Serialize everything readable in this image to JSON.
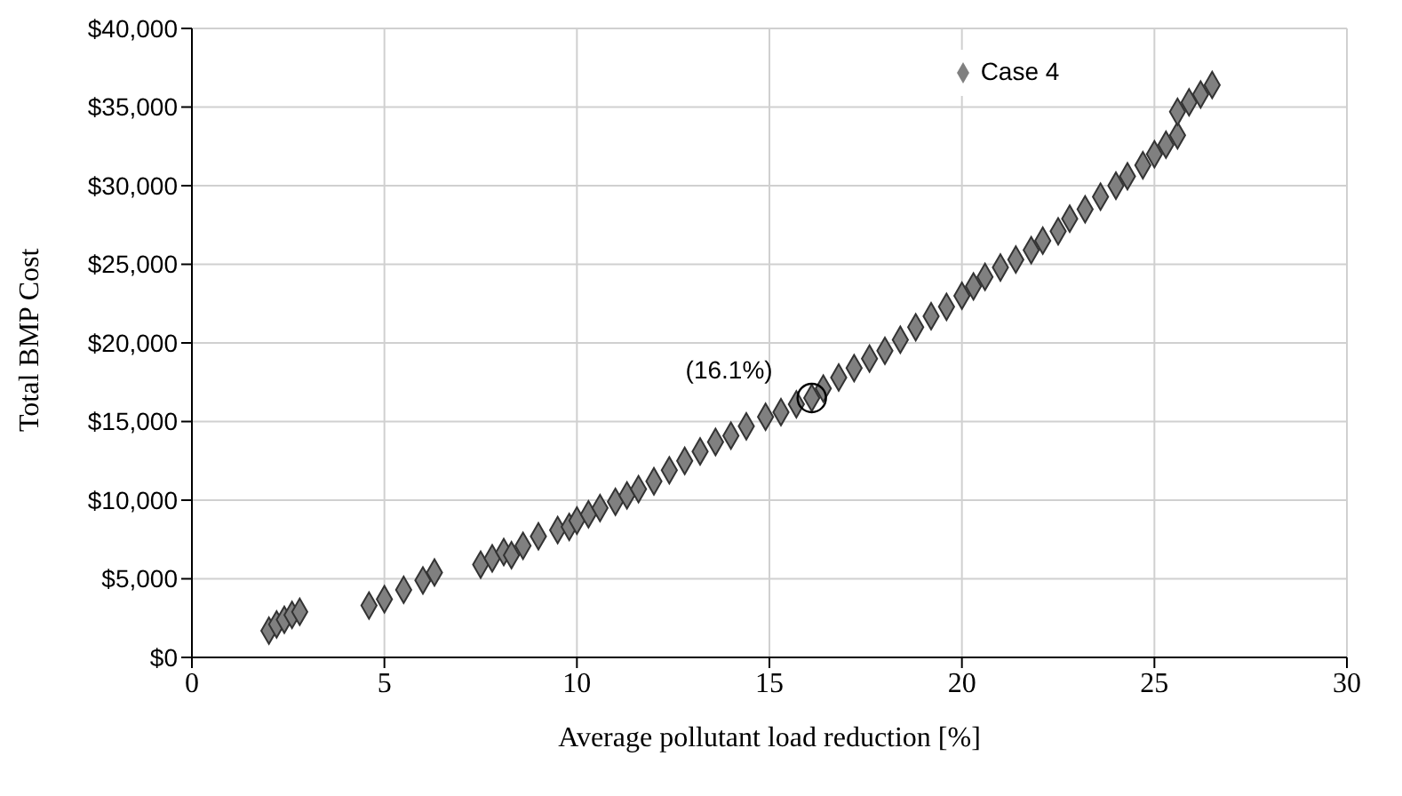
{
  "chart_data": {
    "type": "scatter",
    "xlabel": "Average pollutant load reduction [%]",
    "ylabel": "Total BMP Cost",
    "xlim": [
      0,
      30
    ],
    "xticks": [
      0,
      5,
      10,
      15,
      20,
      25,
      30
    ],
    "ylim": [
      0,
      40000
    ],
    "yticks": [
      {
        "value": 0,
        "label": "$0"
      },
      {
        "value": 5000,
        "label": "$5,000"
      },
      {
        "value": 10000,
        "label": "$10,000"
      },
      {
        "value": 15000,
        "label": "$15,000"
      },
      {
        "value": 20000,
        "label": "$20,000"
      },
      {
        "value": 25000,
        "label": "$25,000"
      },
      {
        "value": 30000,
        "label": "$30,000"
      },
      {
        "value": 35000,
        "label": "$35,000"
      },
      {
        "value": 40000,
        "label": "$40,000"
      }
    ],
    "grid": true,
    "legend": "top right",
    "marker": "diamond",
    "annotations": [
      {
        "text": "(16.1%)",
        "x": 16.1,
        "y": 16500
      }
    ],
    "series": [
      {
        "name": "Case 4",
        "color": "#808080",
        "x": [
          2.0,
          2.2,
          2.4,
          2.6,
          2.8,
          4.6,
          5.0,
          5.5,
          6.0,
          6.3,
          7.5,
          7.8,
          8.1,
          8.3,
          8.6,
          9.0,
          9.5,
          9.8,
          10.0,
          10.3,
          10.6,
          11.0,
          11.3,
          11.6,
          12.0,
          12.4,
          12.8,
          13.2,
          13.6,
          14.0,
          14.4,
          14.9,
          15.3,
          15.7,
          16.1,
          16.4,
          16.8,
          17.2,
          17.6,
          18.0,
          18.4,
          18.8,
          19.2,
          19.6,
          20.0,
          20.3,
          20.6,
          21.0,
          21.4,
          21.8,
          22.1,
          22.5,
          22.8,
          23.2,
          23.6,
          24.0,
          24.3,
          24.7,
          25.0,
          25.3,
          25.6,
          25.6,
          25.9,
          26.2,
          26.5
        ],
        "values": [
          1700,
          2100,
          2400,
          2700,
          2900,
          3300,
          3700,
          4300,
          4900,
          5400,
          5900,
          6300,
          6700,
          6500,
          7100,
          7700,
          8100,
          8300,
          8700,
          9100,
          9500,
          9900,
          10300,
          10700,
          11200,
          11900,
          12500,
          13100,
          13700,
          14100,
          14700,
          15300,
          15600,
          16100,
          16500,
          17100,
          17800,
          18400,
          19000,
          19500,
          20200,
          21000,
          21700,
          22300,
          23000,
          23600,
          24200,
          24800,
          25300,
          25900,
          26500,
          27100,
          27900,
          28500,
          29300,
          30000,
          30600,
          31300,
          32000,
          32600,
          33200,
          34700,
          35300,
          35800,
          36400
        ]
      }
    ]
  }
}
